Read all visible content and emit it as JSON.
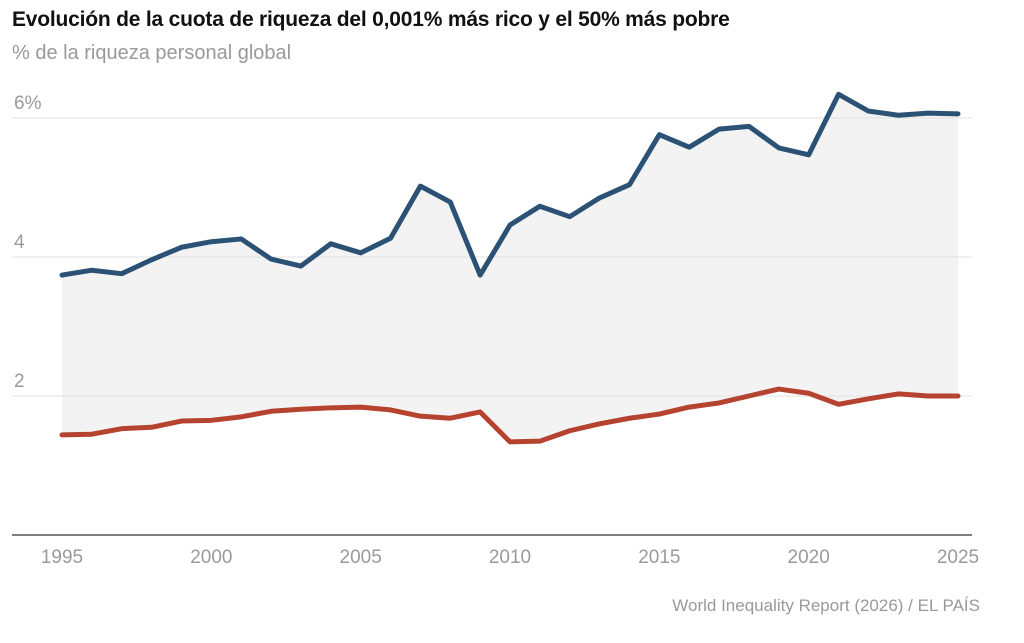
{
  "chart_data": {
    "type": "line",
    "title": "Evolución de la cuota de riqueza del 0,001% más rico y el 50% más pobre",
    "subtitle": "% de la riqueza personal global",
    "source": "World Inequality Report (2026) / EL PAÍS",
    "xlabel": "",
    "ylabel": "",
    "xlim": [
      1995,
      2025
    ],
    "ylim": [
      0,
      6.5
    ],
    "grid": true,
    "x_ticks": [
      "1995",
      "2000",
      "2005",
      "2010",
      "2015",
      "2020",
      "2025"
    ],
    "y_ticks": [
      {
        "value": 6,
        "label": "6%"
      },
      {
        "value": 4,
        "label": "4"
      },
      {
        "value": 2,
        "label": "2"
      }
    ],
    "x": [
      1995,
      1996,
      1997,
      1998,
      1999,
      2000,
      2001,
      2002,
      2003,
      2004,
      2005,
      2006,
      2007,
      2008,
      2009,
      2010,
      2011,
      2012,
      2013,
      2014,
      2015,
      2016,
      2017,
      2018,
      2019,
      2020,
      2021,
      2022,
      2023,
      2024,
      2025
    ],
    "series": [
      {
        "color": "#2b5275",
        "values": [
          3.74,
          3.81,
          3.76,
          3.96,
          4.14,
          4.22,
          4.26,
          3.97,
          3.87,
          4.19,
          4.06,
          4.27,
          5.02,
          4.79,
          3.74,
          4.46,
          4.73,
          4.58,
          4.85,
          5.04,
          5.76,
          5.58,
          5.84,
          5.88,
          5.57,
          5.47,
          6.34,
          6.1,
          6.04,
          6.07,
          6.06
        ]
      },
      {
        "color": "#b5432f",
        "values": [
          1.44,
          1.45,
          1.53,
          1.55,
          1.64,
          1.65,
          1.7,
          1.78,
          1.81,
          1.83,
          1.84,
          1.8,
          1.71,
          1.68,
          1.77,
          1.34,
          1.35,
          1.5,
          1.6,
          1.68,
          1.74,
          1.84,
          1.9,
          2.0,
          2.1,
          2.04,
          1.88,
          1.96,
          2.03,
          2.0,
          2.0
        ]
      }
    ],
    "fill_between_color": "#f3f3f3"
  }
}
